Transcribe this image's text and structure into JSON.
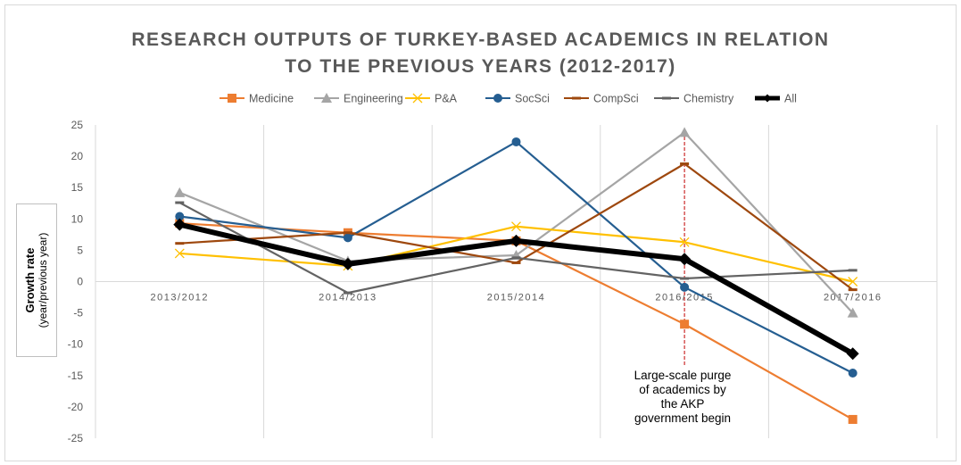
{
  "chart_data": {
    "type": "line",
    "title": "RESEARCH OUTPUTS OF TURKEY-BASED ACADEMICS IN RELATION TO THE PREVIOUS YEARS (2012-2017)",
    "title_lines": [
      "RESEARCH OUTPUTS OF TURKEY-BASED ACADEMICS IN RELATION",
      "TO THE PREVIOUS YEARS (2012-2017)"
    ],
    "ylabel": "Growth rate",
    "ylabel_sub": "(year/previous year)",
    "ylim": [
      -25,
      25
    ],
    "yticks": [
      25,
      20,
      15,
      10,
      5,
      0,
      -5,
      -10,
      -15,
      -20,
      -25
    ],
    "categories": [
      "2013/2012",
      "2014/2013",
      "2015/2014",
      "2016/2015",
      "2017/2016"
    ],
    "grid": "vertical",
    "legend_position": "top",
    "series": [
      {
        "name": "Medicine",
        "color": "#ED7D31",
        "marker": "square",
        "values": [
          9.3,
          7.8,
          6.5,
          -6.8,
          -22
        ]
      },
      {
        "name": "Engineering",
        "color": "#A5A5A5",
        "marker": "triangle",
        "values": [
          14.2,
          3.3,
          4.2,
          23.8,
          -5
        ]
      },
      {
        "name": "P&A",
        "color": "#FFC000",
        "marker": "x",
        "values": [
          4.5,
          2.5,
          8.8,
          6.3,
          0
        ]
      },
      {
        "name": "SocSci",
        "color": "#255E91",
        "marker": "circle",
        "values": [
          10.4,
          7,
          22.3,
          -0.9,
          -14.6
        ]
      },
      {
        "name": "CompSci",
        "color": "#9E480E",
        "marker": "dash",
        "values": [
          6.1,
          7.8,
          3,
          18.8,
          -1.3
        ]
      },
      {
        "name": "Chemistry",
        "color": "#636363",
        "marker": "dash",
        "values": [
          12.6,
          -1.8,
          3.8,
          0.5,
          1.8
        ]
      },
      {
        "name": "All",
        "color": "#000000",
        "marker": "diamond",
        "bold": true,
        "values": [
          9.1,
          2.8,
          6.5,
          3.6,
          -11.5
        ]
      }
    ],
    "annotation": {
      "category": "2016/2015",
      "line_color": "#C00000",
      "text_lines": [
        "Large-scale purge",
        "of academics by",
        "the AKP",
        "government begin"
      ]
    }
  }
}
